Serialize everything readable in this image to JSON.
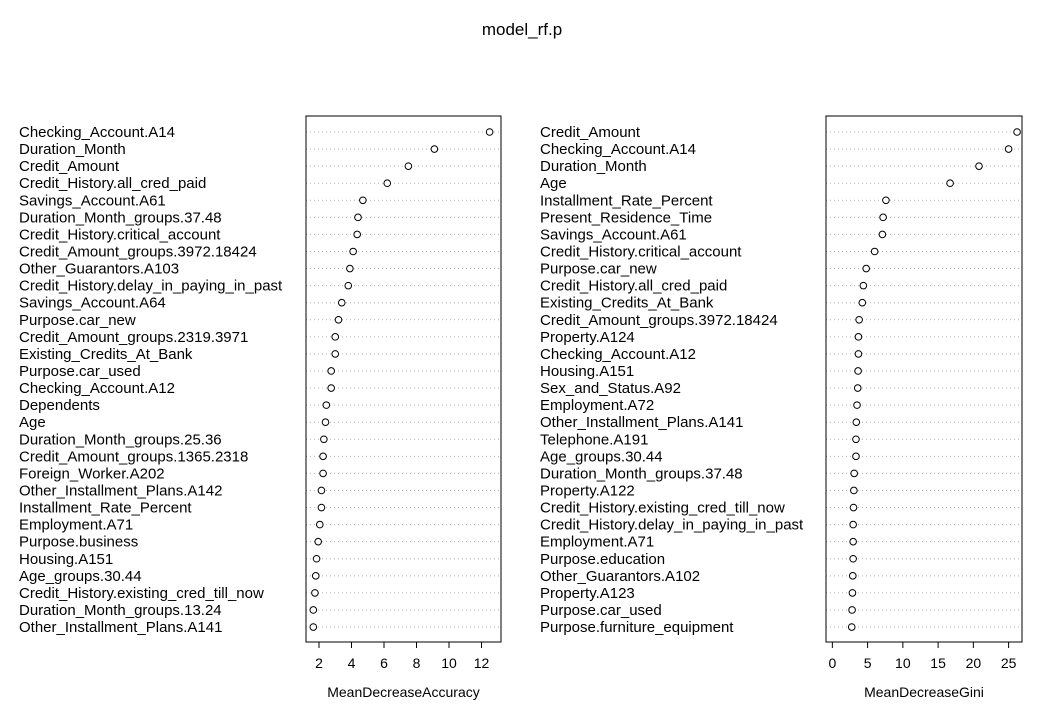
{
  "title": "model_rf.p",
  "chart_data": [
    {
      "type": "scatter",
      "xlabel": "MeanDecreaseAccuracy",
      "xlim": [
        1.2,
        13.2
      ],
      "xticks": [
        2,
        4,
        6,
        8,
        10,
        12
      ],
      "grid": "dotted-horizontal",
      "categories": [
        "Checking_Account.A14",
        "Duration_Month",
        "Credit_Amount",
        "Credit_History.all_cred_paid",
        "Savings_Account.A61",
        "Duration_Month_groups.37.48",
        "Credit_History.critical_account",
        "Credit_Amount_groups.3972.18424",
        "Other_Guarantors.A103",
        "Credit_History.delay_in_paying_in_past",
        "Savings_Account.A64",
        "Purpose.car_new",
        "Credit_Amount_groups.2319.3971",
        "Existing_Credits_At_Bank",
        "Purpose.car_used",
        "Checking_Account.A12",
        "Dependents",
        "Age",
        "Duration_Month_groups.25.36",
        "Credit_Amount_groups.1365.2318",
        "Foreign_Worker.A202",
        "Other_Installment_Plans.A142",
        "Installment_Rate_Percent",
        "Employment.A71",
        "Purpose.business",
        "Housing.A151",
        "Age_groups.30.44",
        "Credit_History.existing_cred_till_now",
        "Duration_Month_groups.13.24",
        "Other_Installment_Plans.A141"
      ],
      "values": [
        12.5,
        9.1,
        7.5,
        6.2,
        4.7,
        4.4,
        4.35,
        4.1,
        3.9,
        3.8,
        3.4,
        3.2,
        3.0,
        3.0,
        2.75,
        2.75,
        2.45,
        2.4,
        2.3,
        2.25,
        2.25,
        2.15,
        2.15,
        2.05,
        1.95,
        1.85,
        1.8,
        1.75,
        1.65,
        1.65
      ]
    },
    {
      "type": "scatter",
      "xlabel": "MeanDecreaseGini",
      "xlim": [
        -0.9,
        26.9
      ],
      "xticks": [
        0,
        5,
        10,
        15,
        20,
        25
      ],
      "grid": "dotted-horizontal",
      "categories": [
        "Credit_Amount",
        "Checking_Account.A14",
        "Duration_Month",
        "Age",
        "Installment_Rate_Percent",
        "Present_Residence_Time",
        "Savings_Account.A61",
        "Credit_History.critical_account",
        "Purpose.car_new",
        "Credit_History.all_cred_paid",
        "Existing_Credits_At_Bank",
        "Credit_Amount_groups.3972.18424",
        "Property.A124",
        "Checking_Account.A12",
        "Housing.A151",
        "Sex_and_Status.A92",
        "Employment.A72",
        "Other_Installment_Plans.A141",
        "Telephone.A191",
        "Age_groups.30.44",
        "Duration_Month_groups.37.48",
        "Property.A122",
        "Credit_History.existing_cred_till_now",
        "Credit_History.delay_in_paying_in_past",
        "Employment.A71",
        "Purpose.education",
        "Other_Guarantors.A102",
        "Property.A123",
        "Purpose.car_used",
        "Purpose.furniture_equipment"
      ],
      "values": [
        26.2,
        25.0,
        20.8,
        16.7,
        7.6,
        7.2,
        7.1,
        6.0,
        4.8,
        4.4,
        4.25,
        3.8,
        3.7,
        3.7,
        3.65,
        3.6,
        3.5,
        3.4,
        3.35,
        3.35,
        3.1,
        3.05,
        3.0,
        2.95,
        2.95,
        2.95,
        2.9,
        2.85,
        2.8,
        2.75
      ]
    }
  ]
}
